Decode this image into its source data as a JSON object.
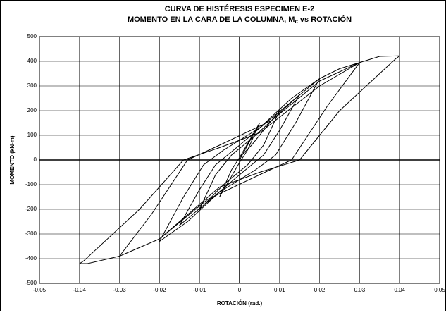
{
  "chart_data": {
    "type": "line",
    "title": "CURVA DE HISTÉRESIS ESPECIMEN E-2",
    "subtitle": {
      "text": "MOMENTO EN LA CARA DE LA COLUMNA, M",
      "subscript": "c",
      "tail": "vs ROTACIÓN"
    },
    "x_label": "ROTACIÓN (rad.)",
    "y_label": "MOMENTO (kN-m)",
    "xlim": [
      -0.05,
      0.05
    ],
    "xticks": [
      -0.05,
      -0.04,
      -0.03,
      -0.02,
      -0.01,
      0,
      0.01,
      0.02,
      0.03,
      0.04,
      0.05
    ],
    "ylim": [
      -500,
      500
    ],
    "yticks": [
      -500,
      -400,
      -300,
      -200,
      -100,
      0,
      100,
      200,
      300,
      400,
      500
    ],
    "grid": true,
    "series": [
      {
        "color": "#000000",
        "x": [
          0,
          0.005,
          0.002,
          0,
          -0.005,
          -0.002,
          0,
          0.005,
          0.002,
          0,
          -0.005,
          -0.002,
          0,
          0.003,
          0.01,
          0.006,
          0.002,
          -0.004,
          -0.01,
          -0.006,
          -0.002,
          0.004,
          0.015,
          0.01,
          0.006,
          0,
          -0.008,
          -0.015,
          -0.01,
          -0.006,
          0,
          0.008,
          0.02,
          0.014,
          0.009,
          0.004,
          -0.005,
          -0.013,
          -0.02,
          -0.014,
          -0.009,
          -0.004,
          0.005,
          0.013,
          0.02,
          0.025,
          0.03,
          0.022,
          0.013,
          0.005,
          -0.008,
          -0.02,
          -0.03,
          -0.022,
          -0.013,
          -0.005,
          0.008,
          0.02,
          0.03,
          0.035,
          0.04,
          0.039,
          0.025,
          0.015,
          0.005,
          -0.005,
          -0.02,
          -0.03,
          -0.038,
          -0.04,
          -0.039,
          -0.025,
          -0.014,
          -0.005,
          0.005,
          0.02,
          0.03
        ],
        "values": [
          0,
          150,
          40,
          -10,
          -150,
          -40,
          10,
          150,
          40,
          -10,
          -150,
          -40,
          10,
          60,
          200,
          60,
          -20,
          -100,
          -200,
          -60,
          20,
          100,
          265,
          120,
          20,
          -60,
          -170,
          -265,
          -120,
          -20,
          60,
          170,
          330,
          150,
          20,
          -40,
          -130,
          -250,
          -330,
          -150,
          -20,
          40,
          130,
          250,
          330,
          370,
          395,
          220,
          0,
          -60,
          -160,
          -320,
          -390,
          -220,
          0,
          60,
          160,
          320,
          395,
          420,
          422,
          410,
          200,
          0,
          -50,
          -110,
          -320,
          -390,
          -420,
          -420,
          -410,
          -200,
          0,
          50,
          110,
          300,
          395
        ]
      }
    ]
  }
}
